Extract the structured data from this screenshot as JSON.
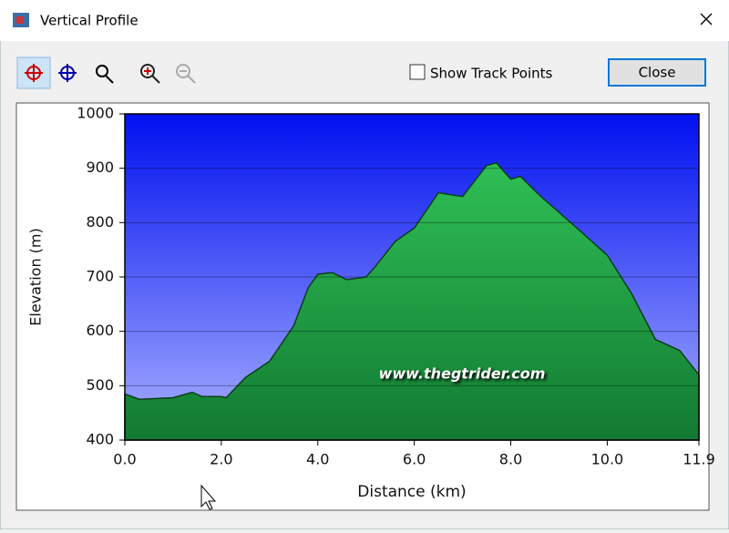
{
  "window": {
    "title": "Vertical Profile",
    "checkbox": "Show Track Points",
    "button": "Close"
  },
  "chart_data": {
    "type": "area",
    "xlabel": "Distance (km)",
    "ylabel": "Elevation (m)",
    "annotation": "www.thegtrider.com",
    "x": [
      0,
      0.3,
      1.0,
      1.4,
      1.6,
      2.0,
      2.1,
      2.5,
      3.0,
      3.5,
      3.8,
      4.0,
      4.3,
      4.6,
      5.0,
      5.2,
      5.6,
      6.0,
      6.5,
      7.0,
      7.5,
      7.7,
      8.0,
      8.2,
      8.6,
      9.5,
      10.0,
      10.5,
      11.0,
      11.5,
      11.9
    ],
    "values": [
      485,
      475,
      478,
      488,
      480,
      480,
      478,
      515,
      545,
      610,
      680,
      705,
      708,
      695,
      700,
      720,
      765,
      790,
      855,
      848,
      905,
      910,
      880,
      885,
      850,
      780,
      740,
      670,
      585,
      565,
      520
    ],
    "color": "#1e9a40",
    "xlim": [
      0,
      11.9
    ],
    "xticks": [
      {
        "value": 0,
        "label": "0.0"
      },
      {
        "value": 2,
        "label": "2.0"
      },
      {
        "value": 4,
        "label": "4.0"
      },
      {
        "value": 6,
        "label": "6.0"
      },
      {
        "value": 8,
        "label": "8.0"
      },
      {
        "value": 10,
        "label": "10.0"
      },
      11.9
    ],
    "ylim": [
      400,
      1000
    ],
    "yticks": [
      400,
      500,
      600,
      700,
      800,
      900,
      1000
    ],
    "grid": true
  }
}
